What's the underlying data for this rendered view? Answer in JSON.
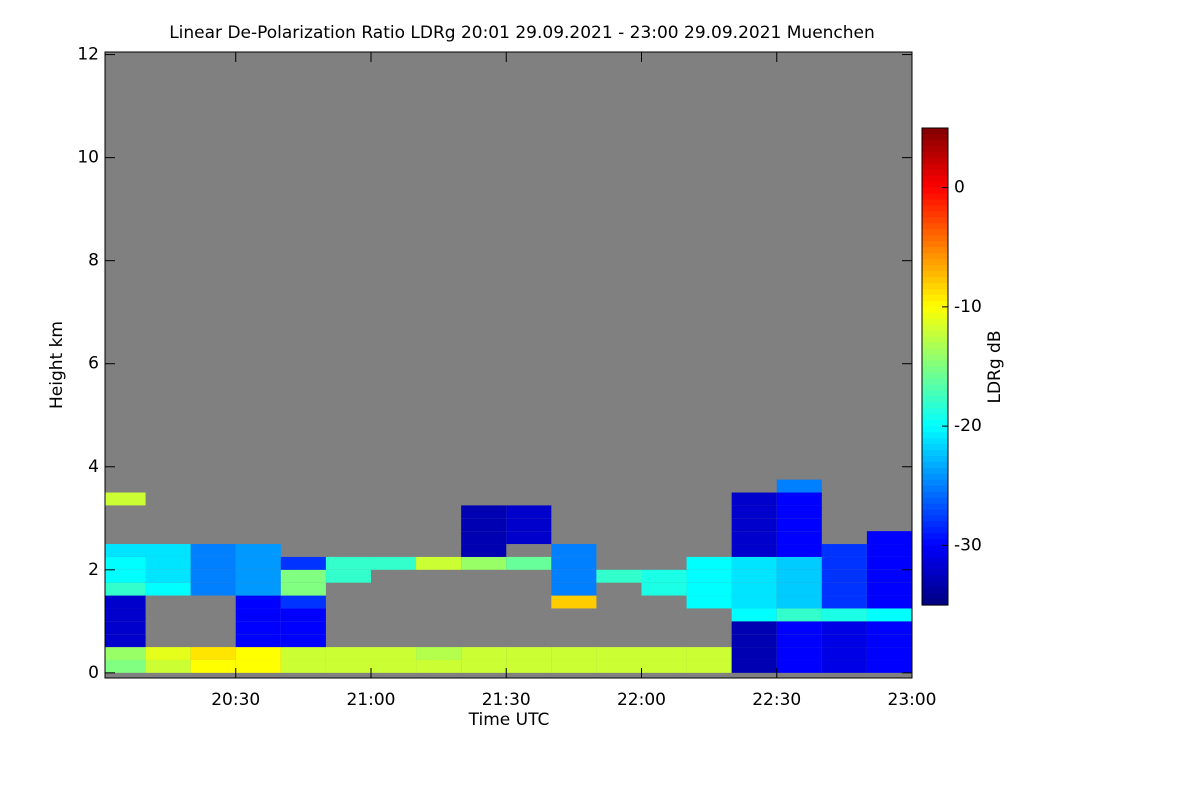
{
  "chart_data": {
    "type": "heatmap",
    "title": "Linear De-Polarization Ratio LDRg   20:01 29.09.2021 - 23:00 29.09.2021 Muenchen",
    "x_label": "Time UTC",
    "y_label": "Height km",
    "colorbar_label": "LDRg dB",
    "xlim": [
      1201,
      1380
    ],
    "xticks": [
      {
        "value": 1230,
        "label": "20:30"
      },
      {
        "value": 1260,
        "label": "21:00"
      },
      {
        "value": 1290,
        "label": "21:30"
      },
      {
        "value": 1320,
        "label": "22:00"
      },
      {
        "value": 1350,
        "label": "22:30"
      },
      {
        "value": 1380,
        "label": "23:00"
      }
    ],
    "ylim": [
      -0.1,
      12.05
    ],
    "yticks": [
      0,
      2,
      4,
      6,
      8,
      10,
      12
    ],
    "clim": [
      -35,
      5
    ],
    "cticks": [
      0,
      -10,
      -20,
      -30
    ],
    "colormap": "jet",
    "background": "#808080",
    "x_edges": [
      1200,
      1210,
      1220,
      1230,
      1240,
      1250,
      1260,
      1270,
      1280,
      1290,
      1300,
      1310,
      1320,
      1330,
      1340,
      1350,
      1360,
      1370,
      1380
    ],
    "y_edges": [
      0,
      0.25,
      0.5,
      0.75,
      1,
      1.25,
      1.5,
      1.75,
      2,
      2.25,
      2.5,
      2.75,
      3,
      3.25,
      3.5,
      3.75
    ],
    "z": [
      [
        -15,
        -12,
        -10,
        -10,
        -12,
        -12,
        -12,
        -12,
        -12,
        -12,
        -12,
        -12,
        -12,
        -12,
        -33,
        -30,
        -31,
        -30
      ],
      [
        -14,
        -11,
        -9,
        -10,
        -12,
        -12,
        -12,
        -13,
        -12,
        -12,
        -12,
        -12,
        -12,
        -12,
        -33,
        -30,
        -31,
        -30
      ],
      [
        -32,
        null,
        null,
        -30,
        -30,
        null,
        null,
        null,
        null,
        null,
        null,
        null,
        null,
        null,
        -33,
        -30,
        -31,
        -30
      ],
      [
        -32,
        null,
        null,
        -30,
        -30,
        null,
        null,
        null,
        null,
        null,
        null,
        null,
        null,
        null,
        -33,
        -30,
        -31,
        -30
      ],
      [
        -32,
        null,
        null,
        -30,
        -30,
        null,
        null,
        null,
        null,
        null,
        null,
        null,
        null,
        null,
        -20,
        -18,
        -19,
        -20
      ],
      [
        -32,
        null,
        null,
        -30,
        -28,
        null,
        null,
        null,
        null,
        null,
        -8,
        null,
        null,
        -20,
        -21,
        -22,
        -28,
        -30
      ],
      [
        -18,
        -20,
        -25,
        -24,
        -15,
        null,
        null,
        null,
        null,
        null,
        -25,
        null,
        -19,
        -20,
        -21,
        -22,
        -28,
        -30
      ],
      [
        -20,
        -21,
        -25,
        -24,
        -15,
        -18,
        null,
        null,
        null,
        null,
        -25,
        -18,
        -19,
        -20,
        -21,
        -22,
        -28,
        -30
      ],
      [
        -20,
        -21,
        -25,
        -24,
        -28,
        -18,
        -18,
        -12,
        -14,
        -16,
        -25,
        null,
        null,
        -20,
        -21,
        -22,
        -28,
        -30
      ],
      [
        -21,
        -21,
        -25,
        -24,
        null,
        null,
        null,
        null,
        -33,
        null,
        -25,
        null,
        null,
        null,
        -32,
        -30,
        -28,
        -30
      ],
      [
        null,
        null,
        null,
        null,
        null,
        null,
        null,
        null,
        -33,
        -32,
        null,
        null,
        null,
        null,
        -32,
        -30,
        null,
        -30
      ],
      [
        null,
        null,
        null,
        null,
        null,
        null,
        null,
        null,
        -33,
        -32,
        null,
        null,
        null,
        null,
        -32,
        -30,
        null,
        null
      ],
      [
        null,
        null,
        null,
        null,
        null,
        null,
        null,
        null,
        -33,
        -32,
        null,
        null,
        null,
        null,
        -32,
        -30,
        null,
        null
      ],
      [
        -12,
        null,
        null,
        null,
        null,
        null,
        null,
        null,
        null,
        null,
        null,
        null,
        null,
        null,
        -32,
        -30,
        null,
        null
      ],
      [
        null,
        null,
        null,
        null,
        null,
        null,
        null,
        null,
        null,
        null,
        null,
        null,
        null,
        null,
        null,
        -25,
        null,
        null
      ]
    ]
  }
}
